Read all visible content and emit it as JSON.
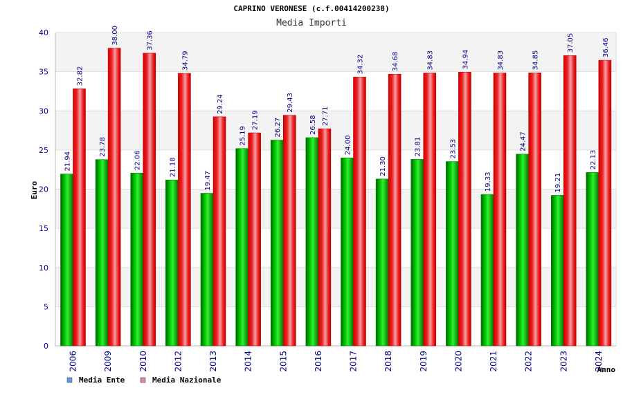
{
  "chart_data": {
    "type": "bar",
    "title": "CAPRINO VERONESE (c.f.00414200238)",
    "subtitle": "Media Importi",
    "xlabel": "Anno",
    "ylabel": "Euro",
    "ylim": [
      0,
      40
    ],
    "yticks": [
      "0",
      "5",
      "10",
      "15",
      "20",
      "25",
      "30",
      "35",
      "40"
    ],
    "categories": [
      "2006",
      "2009",
      "2010",
      "2012",
      "2013",
      "2014",
      "2015",
      "2016",
      "2017",
      "2018",
      "2019",
      "2020",
      "2021",
      "2022",
      "2023",
      "2024"
    ],
    "series": [
      {
        "name": "Media Ente",
        "color": "#00bb00",
        "legend_color": "#6699dd",
        "values": [
          21.94,
          23.78,
          22.06,
          21.18,
          19.47,
          25.19,
          26.27,
          26.58,
          24.0,
          21.3,
          23.81,
          23.53,
          19.33,
          24.47,
          19.21,
          22.13
        ],
        "labels": [
          "21.94",
          "23.78",
          "22.06",
          "21.18",
          "19.47",
          "25.19",
          "26.27",
          "26.58",
          "24.00",
          "21.30",
          "23.81",
          "23.53",
          "19.33",
          "24.47",
          "19.21",
          "22.13"
        ]
      },
      {
        "name": "Media Nazionale",
        "color": "#ee1111",
        "legend_color": "#dd88aa",
        "values": [
          32.82,
          38.0,
          37.36,
          34.79,
          29.24,
          27.19,
          29.43,
          27.71,
          34.32,
          34.68,
          34.83,
          34.94,
          34.83,
          34.85,
          37.05,
          36.46
        ],
        "labels": [
          "32.82",
          "38.00",
          "37.36",
          "34.79",
          "29.24",
          "27.19",
          "29.43",
          "27.71",
          "34.32",
          "34.68",
          "34.83",
          "34.94",
          "34.83",
          "34.85",
          "37.05",
          "36.46"
        ]
      }
    ],
    "grid": true,
    "legend_position": "bottom-left"
  }
}
